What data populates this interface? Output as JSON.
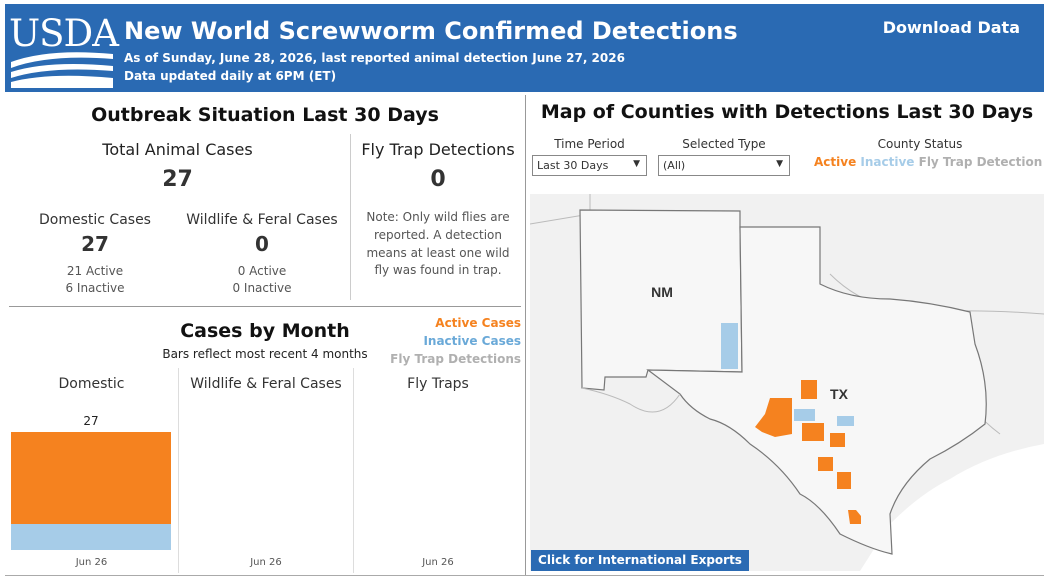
{
  "header": {
    "logo_text": "USDA",
    "title": "New World Screwworm Confirmed Detections",
    "subtitle_line1": "As of Sunday, June 28, 2026, last reported animal detection June 27, 2026",
    "subtitle_line2": "Data updated daily at 6PM (ET)",
    "download_label": "Download Data",
    "bg_color": "#2a6ab3"
  },
  "outbreak": {
    "heading": "Outbreak Situation Last 30 Days",
    "total_label": "Total Animal Cases",
    "total_value": "27",
    "domestic_label": "Domestic Cases",
    "domestic_value": "27",
    "domestic_active": "21 Active",
    "domestic_inactive": "6 Inactive",
    "wildlife_label": "Wildlife & Feral Cases",
    "wildlife_value": "0",
    "wildlife_active": "0 Active",
    "wildlife_inactive": "0 Inactive",
    "flytrap_label": "Fly Trap Detections",
    "flytrap_value": "0",
    "flytrap_note": [
      "Note: Only wild flies are",
      "reported. A detection",
      "means at least one wild",
      "fly was found in trap."
    ]
  },
  "cases_by_month": {
    "heading": "Cases by Month",
    "subheading": "Bars reflect most recent 4 months",
    "legend": {
      "active": "Active Cases",
      "inactive": "Inactive Cases",
      "flytrap": "Fly Trap Detections"
    },
    "colors": {
      "active": "#f5821f",
      "inactive": "#a6cce8",
      "flytrap": "#b8b8b8"
    }
  },
  "chart_data": {
    "type": "bar",
    "panels": [
      {
        "title": "Domestic",
        "categories": [
          "Jun 26"
        ],
        "series": [
          {
            "name": "Active Cases",
            "values": [
              21
            ]
          },
          {
            "name": "Inactive Cases",
            "values": [
              6
            ]
          }
        ],
        "total_labels": [
          "27"
        ]
      },
      {
        "title": "Wildlife & Feral Cases",
        "categories": [
          "Jun 26"
        ],
        "series": [
          {
            "name": "Active Cases",
            "values": [
              0
            ]
          },
          {
            "name": "Inactive Cases",
            "values": [
              0
            ]
          }
        ],
        "total_labels": [
          ""
        ]
      },
      {
        "title": "Fly Traps",
        "categories": [
          "Jun 26"
        ],
        "series": [
          {
            "name": "Fly Trap Detections",
            "values": [
              0
            ]
          }
        ],
        "total_labels": [
          ""
        ]
      }
    ],
    "ylim": [
      0,
      27
    ]
  },
  "map": {
    "heading": "Map of Counties with Detections Last 30 Days",
    "time_period_label": "Time Period",
    "time_period_value": "Last 30 Days",
    "type_label": "Selected Type",
    "type_value": "(All)",
    "status_label": "County Status",
    "status_active": "Active",
    "status_inactive": "Inactive",
    "status_flytrap": "Fly Trap Detection",
    "state_nm": "NM",
    "state_tx": "TX",
    "intl_button": "Click for International Exports",
    "map_bg": "#f1f1f1"
  }
}
